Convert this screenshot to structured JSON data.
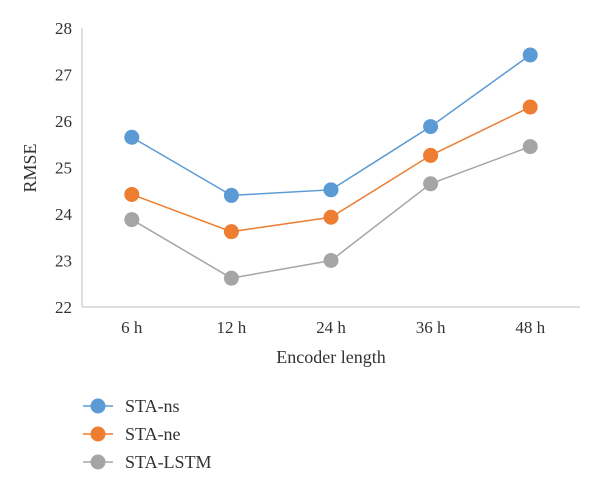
{
  "chart_data": {
    "type": "line",
    "title": "",
    "xlabel": "Encoder length",
    "ylabel": "RMSE",
    "ylim": [
      22,
      28
    ],
    "yticks": [
      "22",
      "23",
      "24",
      "25",
      "26",
      "27",
      "28"
    ],
    "categories": [
      "6 h",
      "12 h",
      "24 h",
      "36 h",
      "48 h"
    ],
    "grid": false,
    "legend_position": "bottom-left",
    "series": [
      {
        "name": "STA-ns",
        "color": "#5b9bd5",
        "values": [
          25.65,
          24.4,
          24.52,
          25.88,
          27.42
        ]
      },
      {
        "name": "STA-ne",
        "color": "#ed7d31",
        "values": [
          24.42,
          23.62,
          23.93,
          25.26,
          26.3
        ]
      },
      {
        "name": "STA-LSTM",
        "color": "#a5a5a5",
        "values": [
          23.88,
          22.62,
          23.0,
          24.65,
          25.45
        ]
      }
    ]
  }
}
